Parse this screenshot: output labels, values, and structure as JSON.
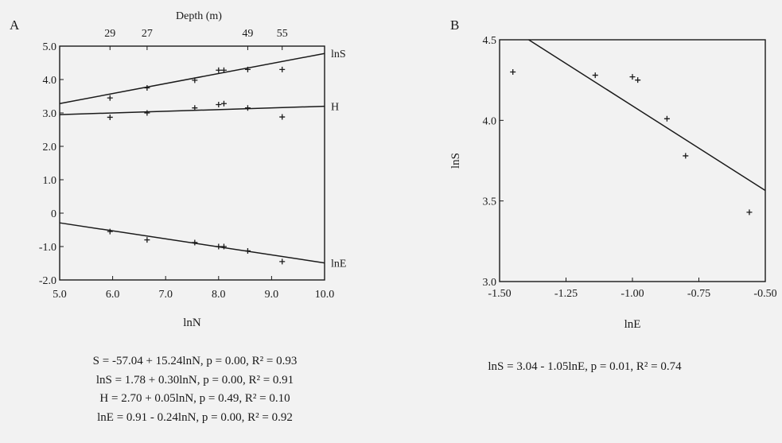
{
  "chart_data": [
    {
      "panel": "A",
      "type": "scatter",
      "xlabel": "lnN",
      "top_axis_label": "Depth (m)",
      "top_ticks": [
        {
          "x": 5.95,
          "label": "29"
        },
        {
          "x": 6.65,
          "label": "27"
        },
        {
          "x": 8.55,
          "label": "49"
        },
        {
          "x": 9.2,
          "label": "55"
        }
      ],
      "xlim": [
        5.0,
        10.0
      ],
      "ylim": [
        -2.0,
        5.0
      ],
      "xticks": [
        "5.0",
        "6.0",
        "7.0",
        "8.0",
        "9.0",
        "10.0"
      ],
      "yticks": [
        "-2.0",
        "-1.0",
        "0",
        "1.0",
        "2.0",
        "3.0",
        "4.0",
        "5.0"
      ],
      "series": [
        {
          "name": "lnS",
          "points": [
            [
              5.95,
              3.45
            ],
            [
              6.65,
              3.75
            ],
            [
              7.55,
              3.98
            ],
            [
              8.0,
              4.28
            ],
            [
              8.1,
              4.28
            ],
            [
              8.55,
              4.3
            ],
            [
              9.2,
              4.3
            ]
          ],
          "line": {
            "intercept": 1.78,
            "slope": 0.3
          }
        },
        {
          "name": "H",
          "points": [
            [
              5.95,
              2.87
            ],
            [
              6.65,
              3.0
            ],
            [
              7.55,
              3.15
            ],
            [
              8.0,
              3.25
            ],
            [
              8.1,
              3.28
            ],
            [
              8.55,
              3.15
            ],
            [
              9.2,
              2.88
            ]
          ],
          "line": {
            "intercept": 2.7,
            "slope": 0.05
          }
        },
        {
          "name": "lnE",
          "points": [
            [
              5.95,
              -0.55
            ],
            [
              6.65,
              -0.8
            ],
            [
              7.55,
              -0.88
            ],
            [
              8.0,
              -1.0
            ],
            [
              8.1,
              -1.0
            ],
            [
              8.55,
              -1.13
            ],
            [
              9.2,
              -1.45
            ]
          ],
          "line": {
            "intercept": 0.91,
            "slope": -0.24
          }
        }
      ],
      "equations": [
        "S = -57.04 + 15.24lnN,  p = 0.00,  R² = 0.93",
        "lnS = 1.78 + 0.30lnN,  p = 0.00,  R² = 0.91",
        "H = 2.70 + 0.05lnN,  p = 0.49,  R² = 0.10",
        "lnE = 0.91 - 0.24lnN,  p = 0.00,  R² = 0.92"
      ]
    },
    {
      "panel": "B",
      "type": "scatter",
      "xlabel": "lnE",
      "ylabel": "lnS",
      "xlim": [
        -1.5,
        -0.5
      ],
      "ylim": [
        3.0,
        4.5
      ],
      "xticks": [
        "-1.50",
        "-1.25",
        "-1.00",
        "-0.75",
        "-0.50"
      ],
      "yticks": [
        "3.0",
        "3.5",
        "4.0",
        "4.5"
      ],
      "points": [
        [
          -1.45,
          4.3
        ],
        [
          -1.14,
          4.28
        ],
        [
          -1.0,
          4.27
        ],
        [
          -0.98,
          4.25
        ],
        [
          -0.87,
          4.01
        ],
        [
          -0.8,
          3.78
        ],
        [
          -0.56,
          3.43
        ]
      ],
      "line": {
        "intercept": 3.04,
        "slope": -1.05
      },
      "equations": [
        "lnS = 3.04 - 1.05lnE,  p = 0.01,  R² = 0.74"
      ]
    }
  ]
}
